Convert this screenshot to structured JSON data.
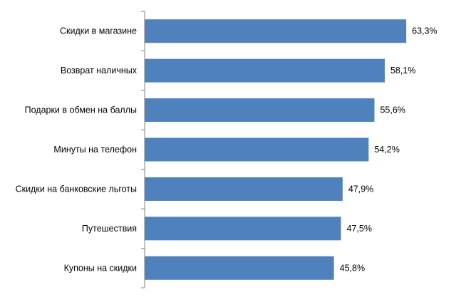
{
  "chart_data": {
    "type": "bar",
    "orientation": "horizontal",
    "categories": [
      "Скидки в магазине",
      "Возврат наличных",
      "Подарки в обмен на баллы",
      "Минуты на телефон",
      "Скидки на банковские льготы",
      "Путешествия",
      "Купоны на скидки"
    ],
    "values": [
      63.3,
      58.1,
      55.6,
      54.2,
      47.9,
      47.5,
      45.8
    ],
    "value_labels": [
      "63,3%",
      "58,1%",
      "55,6%",
      "54,2%",
      "47,9%",
      "47,5%",
      "45,8%"
    ],
    "xlim": [
      0,
      65
    ],
    "grid": false,
    "legend": "none",
    "bar_color": "#4f81bd",
    "axis_color": "#808080"
  }
}
